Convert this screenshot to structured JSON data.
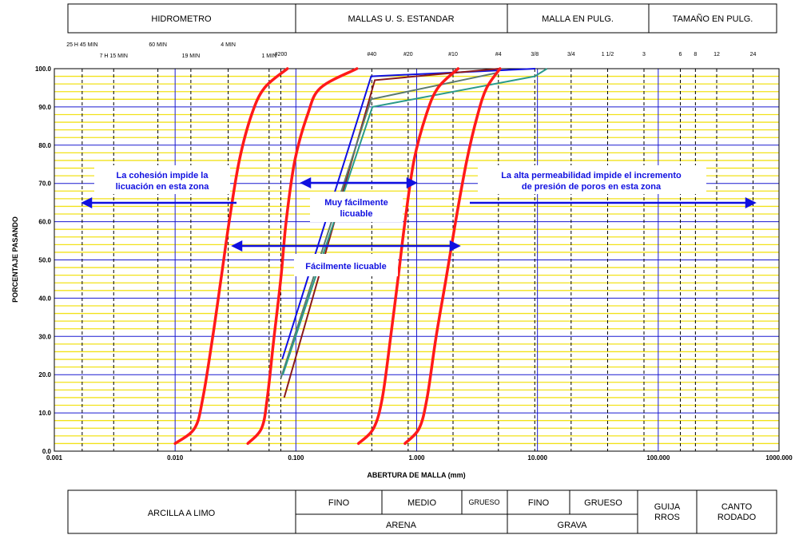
{
  "header": {
    "hidrometro": "HIDROMETRO",
    "mallas": "MALLAS U. S. ESTANDAR",
    "malla_pulg": "MALLA EN PULG.",
    "tamano": "TAMAÑO EN PULG."
  },
  "hydrometer_times": [
    {
      "label": "25 H 45 MIN",
      "x": 0.0017
    },
    {
      "label": "7 H 15 MIN",
      "x": 0.0031
    },
    {
      "label": "60 MIN",
      "x": 0.0072
    },
    {
      "label": "19 MIN",
      "x": 0.0135
    },
    {
      "label": "4 MIN",
      "x": 0.0275
    },
    {
      "label": "1 MIN",
      "x": 0.06
    }
  ],
  "sieves": [
    {
      "label": "#200",
      "x": 0.075
    },
    {
      "label": "#40",
      "x": 0.425
    },
    {
      "label": "#20",
      "x": 0.85
    },
    {
      "label": "#10",
      "x": 2.0
    },
    {
      "label": "#4",
      "x": 4.75
    }
  ],
  "inch_sieves": [
    {
      "label": "3/8",
      "x": 9.5
    },
    {
      "label": "3/4",
      "x": 19.0
    },
    {
      "label": "1 1/2",
      "x": 38.1
    },
    {
      "label": "3",
      "x": 76.2
    }
  ],
  "size_inches": [
    {
      "label": "6",
      "x": 152.4
    },
    {
      "label": "8",
      "x": 203.2
    },
    {
      "label": "12",
      "x": 304.8
    },
    {
      "label": "24",
      "x": 609.6
    }
  ],
  "annotations": {
    "cohesion_line1": "La cohesión impide la",
    "cohesion_line2": "licuación en esta zona",
    "permeab_line1": "La alta permeabilidad impide el incremento",
    "permeab_line2": "de presión de poros en esta zona",
    "muy_line1": "Muy fácilmente",
    "muy_line2": "licuable",
    "facil": "Fácilmente licuable"
  },
  "bottom": {
    "arcilla": "ARCILLA A LIMO",
    "fino_arena": "FINO",
    "medio": "MEDIO",
    "grueso_arena": "GRUESO",
    "arena": "ARENA",
    "fino_grava": "FINO",
    "grueso_grava": "GRUESO",
    "grava": "GRAVA",
    "guija_1": "GUIJA",
    "guija_2": "RROS",
    "canto_1": "CANTO",
    "canto_2": "RODADO"
  },
  "colors": {
    "boundary": "#ff1a1a",
    "grid_major": "#1a1ad0",
    "grid_minor": "#f2e21a",
    "dashed": "#000000",
    "annotation": "#1010e0"
  },
  "chart_data": {
    "type": "line",
    "title": "",
    "xlabel": "ABERTURA DE MALLA (mm)",
    "ylabel": "PORCENTAJE PASANDO",
    "xscale": "log",
    "xlim": [
      0.001,
      1000
    ],
    "ylim": [
      0,
      100
    ],
    "x_ticks": [
      "0.001",
      "0.010",
      "0.100",
      "1.000",
      "10.000",
      "100.000",
      "1000.000"
    ],
    "y_ticks": [
      "0.0",
      "10.0",
      "20.0",
      "30.0",
      "40.0",
      "50.0",
      "60.0",
      "70.0",
      "80.0",
      "90.0",
      "100.0"
    ],
    "boundary_curves": [
      {
        "points": [
          [
            0.01,
            2
          ],
          [
            0.0145,
            6
          ],
          [
            0.017,
            14
          ],
          [
            0.0205,
            30
          ],
          [
            0.024,
            45
          ],
          [
            0.028,
            60
          ],
          [
            0.034,
            76
          ],
          [
            0.043,
            88
          ],
          [
            0.055,
            95
          ],
          [
            0.085,
            100
          ]
        ]
      },
      {
        "points": [
          [
            0.04,
            2
          ],
          [
            0.052,
            6
          ],
          [
            0.058,
            14
          ],
          [
            0.066,
            30
          ],
          [
            0.075,
            45
          ],
          [
            0.083,
            60
          ],
          [
            0.098,
            76
          ],
          [
            0.125,
            88
          ],
          [
            0.16,
            95
          ],
          [
            0.32,
            100
          ]
        ]
      },
      {
        "points": [
          [
            0.33,
            2
          ],
          [
            0.44,
            6
          ],
          [
            0.52,
            14
          ],
          [
            0.61,
            30
          ],
          [
            0.7,
            45
          ],
          [
            0.8,
            60
          ],
          [
            0.95,
            76
          ],
          [
            1.2,
            88
          ],
          [
            1.5,
            95
          ],
          [
            2.2,
            100
          ]
        ]
      },
      {
        "points": [
          [
            0.8,
            2
          ],
          [
            1.05,
            6
          ],
          [
            1.22,
            14
          ],
          [
            1.45,
            30
          ],
          [
            1.75,
            45
          ],
          [
            2.1,
            60
          ],
          [
            2.6,
            76
          ],
          [
            3.2,
            88
          ],
          [
            3.8,
            95
          ],
          [
            4.9,
            100
          ]
        ]
      }
    ],
    "series": [
      {
        "color": "#1010e0",
        "points": [
          [
            0.077,
            24
          ],
          [
            0.42,
            98
          ],
          [
            9.6,
            100
          ]
        ]
      },
      {
        "color": "#8b1a1a",
        "points": [
          [
            0.08,
            14
          ],
          [
            0.45,
            97
          ],
          [
            4.8,
            100
          ]
        ]
      },
      {
        "color": "#5a7a6e",
        "points": [
          [
            0.075,
            19
          ],
          [
            0.42,
            92
          ],
          [
            4.75,
            99
          ]
        ]
      },
      {
        "color": "#2a9a8a",
        "points": [
          [
            0.078,
            20
          ],
          [
            0.43,
            90
          ],
          [
            9.5,
            98
          ],
          [
            12,
            100
          ]
        ]
      }
    ],
    "grid": true
  }
}
